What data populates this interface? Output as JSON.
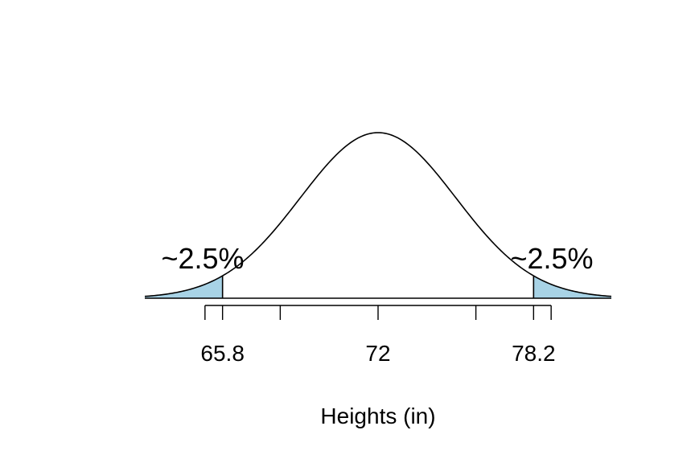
{
  "chart_data": {
    "type": "area",
    "distribution": "normal",
    "mean": 72,
    "sd": 3.1,
    "xlim": [
      62.7,
      81.3
    ],
    "x_ticks": [
      65.1,
      68.1,
      72,
      75.9,
      78.9
    ],
    "tick_labels": [
      {
        "value": 65.8,
        "label": "65.8"
      },
      {
        "value": 72,
        "label": "72"
      },
      {
        "value": 78.2,
        "label": "78.2"
      }
    ],
    "shaded_regions": [
      {
        "from": 62.7,
        "to": 65.8,
        "label": "~2.5%"
      },
      {
        "from": 78.2,
        "to": 81.3,
        "label": "~2.5%"
      }
    ],
    "xlabel": "Heights (in)",
    "ylabel": "",
    "title": "",
    "colors": {
      "shade": "#a8d3e6",
      "line": "#000000"
    }
  }
}
